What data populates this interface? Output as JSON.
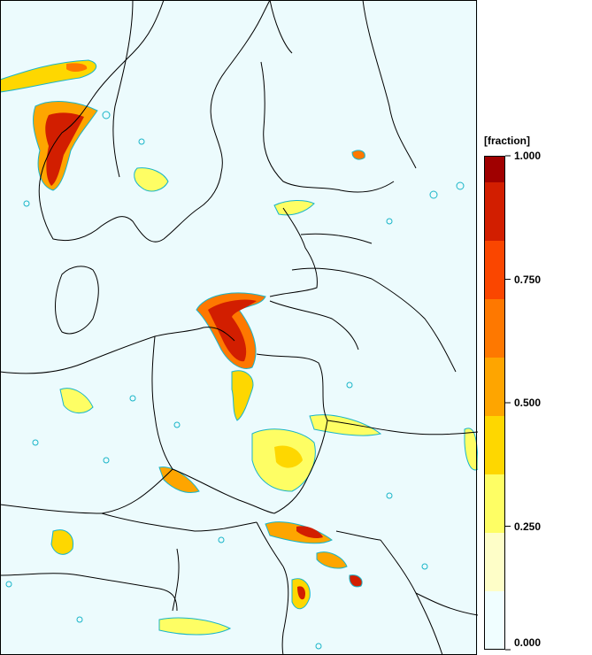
{
  "legend": {
    "unit": "[fraction]",
    "ticks": [
      "1.000",
      "0.750",
      "0.500",
      "0.250",
      "0.000"
    ],
    "tick_values": [
      1.0,
      0.75,
      0.5,
      0.25,
      0.0
    ],
    "classes": [
      {
        "from": 0.0,
        "to": 0.125,
        "color": "#f0feff"
      },
      {
        "from": 0.125,
        "to": 0.25,
        "color": "#fefec8"
      },
      {
        "from": 0.25,
        "to": 0.375,
        "color": "#fefe64"
      },
      {
        "from": 0.375,
        "to": 0.5,
        "color": "#fed700"
      },
      {
        "from": 0.5,
        "to": 0.625,
        "color": "#fea500"
      },
      {
        "from": 0.625,
        "to": 0.75,
        "color": "#fe7800"
      },
      {
        "from": 0.75,
        "to": 0.875,
        "color": "#fa4600"
      },
      {
        "from": 0.875,
        "to": 1.0,
        "color": "#d21e00"
      },
      {
        "from": 1.0,
        "to": 1.0,
        "color": "#a00000"
      }
    ]
  },
  "colors": {
    "background": "#ecfbfd",
    "border": "#000000",
    "contour": "#19b5c8"
  }
}
